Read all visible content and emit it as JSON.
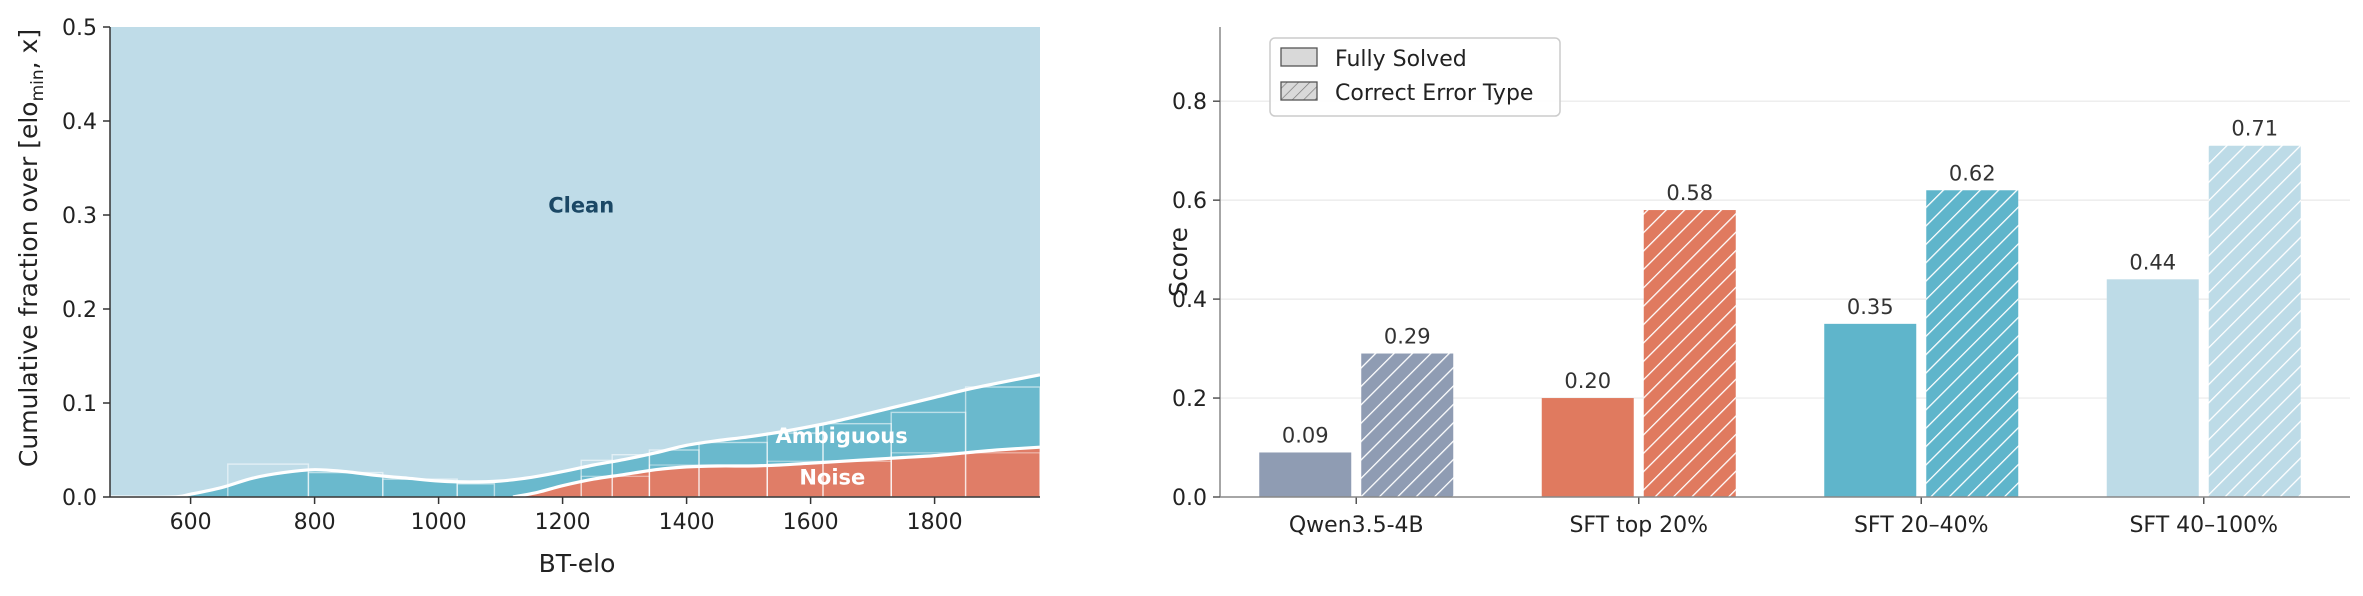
{
  "chart_data": [
    {
      "type": "area",
      "xlabel": "BT-elo",
      "ylabel": "Cumulative fraction over [elo",
      "ylabel_sub": "min",
      "ylabel_tail": ", x]",
      "xlim": [
        470,
        1970
      ],
      "ylim": [
        0,
        0.5
      ],
      "xticks": [
        600,
        800,
        1000,
        1200,
        1400,
        1600,
        1800
      ],
      "yticks": [
        0.0,
        0.1,
        0.2,
        0.3,
        0.4,
        0.5
      ],
      "grid": false,
      "colors": {
        "clean": "#bfdce8",
        "ambiguous": "#6ab9cd",
        "noise": "#e07d67",
        "line": "#ffffff"
      },
      "series": [
        {
          "name": "Noise",
          "x": [
            1120,
            1160,
            1200,
            1250,
            1300,
            1350,
            1400,
            1450,
            1500,
            1550,
            1600,
            1650,
            1700,
            1750,
            1800,
            1850,
            1900,
            1970
          ],
          "values": [
            0.0,
            0.005,
            0.012,
            0.019,
            0.024,
            0.029,
            0.032,
            0.033,
            0.033,
            0.034,
            0.036,
            0.038,
            0.04,
            0.042,
            0.044,
            0.047,
            0.05,
            0.053
          ]
        },
        {
          "name": "Ambiguous",
          "x": [
            470,
            570,
            600,
            650,
            700,
            750,
            800,
            850,
            900,
            950,
            1000,
            1050,
            1100,
            1150,
            1200,
            1250,
            1300,
            1350,
            1400,
            1450,
            1500,
            1550,
            1600,
            1650,
            1700,
            1750,
            1800,
            1850,
            1900,
            1970
          ],
          "values": [
            0.0,
            0.0,
            0.003,
            0.01,
            0.02,
            0.026,
            0.029,
            0.027,
            0.023,
            0.02,
            0.017,
            0.016,
            0.017,
            0.021,
            0.027,
            0.034,
            0.04,
            0.047,
            0.055,
            0.06,
            0.064,
            0.069,
            0.075,
            0.082,
            0.09,
            0.098,
            0.106,
            0.114,
            0.121,
            0.13
          ]
        },
        {
          "name": "Clean",
          "x": [
            470,
            1970
          ],
          "values": [
            0.5,
            0.5
          ]
        }
      ],
      "histogram_steps": {
        "ambiguous": [
          [
            660,
            790,
            0.035
          ],
          [
            790,
            910,
            0.026
          ],
          [
            910,
            1030,
            0.019
          ],
          [
            1030,
            1090,
            0.014
          ],
          [
            1230,
            1280,
            0.039
          ],
          [
            1280,
            1340,
            0.045
          ],
          [
            1340,
            1420,
            0.05
          ],
          [
            1420,
            1530,
            0.058
          ],
          [
            1530,
            1620,
            0.068
          ],
          [
            1620,
            1730,
            0.078
          ],
          [
            1730,
            1850,
            0.09
          ],
          [
            1850,
            1970,
            0.117
          ]
        ],
        "noise": [
          [
            1230,
            1340,
            0.022
          ],
          [
            1340,
            1530,
            0.034
          ],
          [
            1530,
            1730,
            0.038
          ],
          [
            1730,
            1970,
            0.047
          ]
        ]
      },
      "annotations": [
        {
          "text": "Clean",
          "x": 1230,
          "y": 0.31,
          "color": "#1b4865"
        },
        {
          "text": "Ambiguous",
          "x": 1650,
          "y": 0.065,
          "color": "#ffffff"
        },
        {
          "text": "Noise",
          "x": 1635,
          "y": 0.021,
          "color": "#ffffff"
        }
      ]
    },
    {
      "type": "bar",
      "categories": [
        "Qwen3.5-4B",
        "SFT top 20%",
        "SFT 20–40%",
        "SFT 40–100%"
      ],
      "ylabel": "Score",
      "xlabel": "",
      "ylim": [
        0,
        0.95
      ],
      "yticks": [
        0.0,
        0.2,
        0.4,
        0.6,
        0.8
      ],
      "grid": true,
      "legend_position": "top-left",
      "category_colors": [
        "#8f9cb3",
        "#e07a5f",
        "#5fb5cb",
        "#bddbe7"
      ],
      "series": [
        {
          "name": "Fully Solved",
          "hatch": false,
          "values": [
            0.09,
            0.2,
            0.35,
            0.44
          ],
          "labels": [
            "0.09",
            "0.20",
            "0.35",
            "0.44"
          ]
        },
        {
          "name": "Correct Error Type",
          "hatch": true,
          "values": [
            0.29,
            0.58,
            0.62,
            0.71
          ],
          "labels": [
            "0.29",
            "0.58",
            "0.62",
            "0.71"
          ]
        }
      ]
    }
  ]
}
